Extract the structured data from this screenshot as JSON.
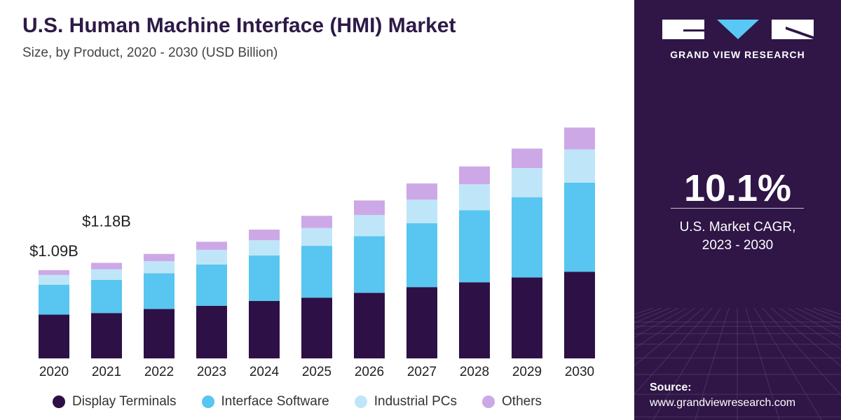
{
  "header": {
    "title": "U.S. Human Machine Interface (HMI) Market",
    "subtitle": "Size, by Product, 2020 - 2030 (USD Billion)"
  },
  "chart_data": {
    "type": "bar",
    "stacked": true,
    "categories": [
      "2020",
      "2021",
      "2022",
      "2023",
      "2024",
      "2025",
      "2026",
      "2027",
      "2028",
      "2029",
      "2030"
    ],
    "series": [
      {
        "name": "Display Terminals",
        "color": "#2d1045",
        "values": [
          0.54,
          0.56,
          0.61,
          0.65,
          0.71,
          0.75,
          0.81,
          0.88,
          0.94,
          1.0,
          1.07
        ]
      },
      {
        "name": "Interface Software",
        "color": "#58c6f0",
        "values": [
          0.37,
          0.41,
          0.44,
          0.51,
          0.56,
          0.64,
          0.7,
          0.79,
          0.89,
          0.99,
          1.1
        ]
      },
      {
        "name": "Industrial PCs",
        "color": "#bfe6f8",
        "values": [
          0.12,
          0.13,
          0.15,
          0.18,
          0.19,
          0.22,
          0.26,
          0.29,
          0.32,
          0.36,
          0.41
        ]
      },
      {
        "name": "Others",
        "color": "#cda8e6",
        "values": [
          0.06,
          0.08,
          0.09,
          0.1,
          0.13,
          0.15,
          0.18,
          0.2,
          0.22,
          0.24,
          0.27
        ]
      }
    ],
    "annotations": [
      {
        "category": "2020",
        "text": "$1.09B"
      },
      {
        "category": "2021",
        "text": "$1.18B"
      }
    ],
    "ylim": [
      0,
      3.5
    ],
    "grid": false,
    "legend_position": "bottom",
    "xlabel": "",
    "ylabel": ""
  },
  "side_panel": {
    "brand": "GRAND VIEW RESEARCH",
    "logo_icon": "gvr-logo-icon",
    "cagr_value": "10.1%",
    "cagr_label_line1": "U.S. Market CAGR,",
    "cagr_label_line2": "2023 - 2030",
    "source_label": "Source:",
    "source_url": "www.grandviewresearch.com",
    "accent_color": "#5ac8f5",
    "background_color": "#2f1646"
  }
}
